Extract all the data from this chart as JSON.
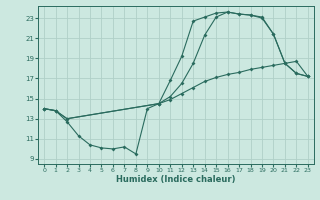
{
  "xlabel": "Humidex (Indice chaleur)",
  "bg_color": "#cce8e0",
  "grid_color": "#b0d0c8",
  "line_color": "#2a6b5e",
  "xlim": [
    -0.5,
    23.5
  ],
  "ylim": [
    8.5,
    24.2
  ],
  "yticks": [
    9,
    11,
    13,
    15,
    17,
    19,
    21,
    23
  ],
  "xticks": [
    0,
    1,
    2,
    3,
    4,
    5,
    6,
    7,
    8,
    9,
    10,
    11,
    12,
    13,
    14,
    15,
    16,
    17,
    18,
    19,
    20,
    21,
    22,
    23
  ],
  "line1_x": [
    0,
    1,
    2,
    3,
    4,
    5,
    6,
    7,
    8,
    9,
    10,
    11,
    12,
    13,
    14,
    15,
    16,
    17,
    18,
    19,
    20,
    21,
    22,
    23
  ],
  "line1_y": [
    14.0,
    13.8,
    12.7,
    11.3,
    10.4,
    10.1,
    10.0,
    10.2,
    9.5,
    14.0,
    14.5,
    16.8,
    19.2,
    22.7,
    23.1,
    23.5,
    23.6,
    23.4,
    23.3,
    23.1,
    21.4,
    18.5,
    17.5,
    17.2
  ],
  "line2_x": [
    0,
    1,
    2,
    10,
    11,
    12,
    13,
    14,
    15,
    16,
    17,
    18,
    19,
    20,
    21,
    22,
    23
  ],
  "line2_y": [
    14.0,
    13.8,
    13.0,
    14.5,
    15.2,
    16.5,
    18.5,
    21.3,
    23.1,
    23.6,
    23.4,
    23.3,
    23.0,
    21.4,
    18.5,
    17.5,
    17.2
  ],
  "line3_x": [
    0,
    1,
    2,
    10,
    11,
    12,
    13,
    14,
    15,
    16,
    17,
    18,
    19,
    20,
    21,
    22,
    23
  ],
  "line3_y": [
    14.0,
    13.8,
    13.0,
    14.5,
    14.9,
    15.5,
    16.1,
    16.7,
    17.1,
    17.4,
    17.6,
    17.9,
    18.1,
    18.3,
    18.5,
    18.7,
    17.2
  ]
}
